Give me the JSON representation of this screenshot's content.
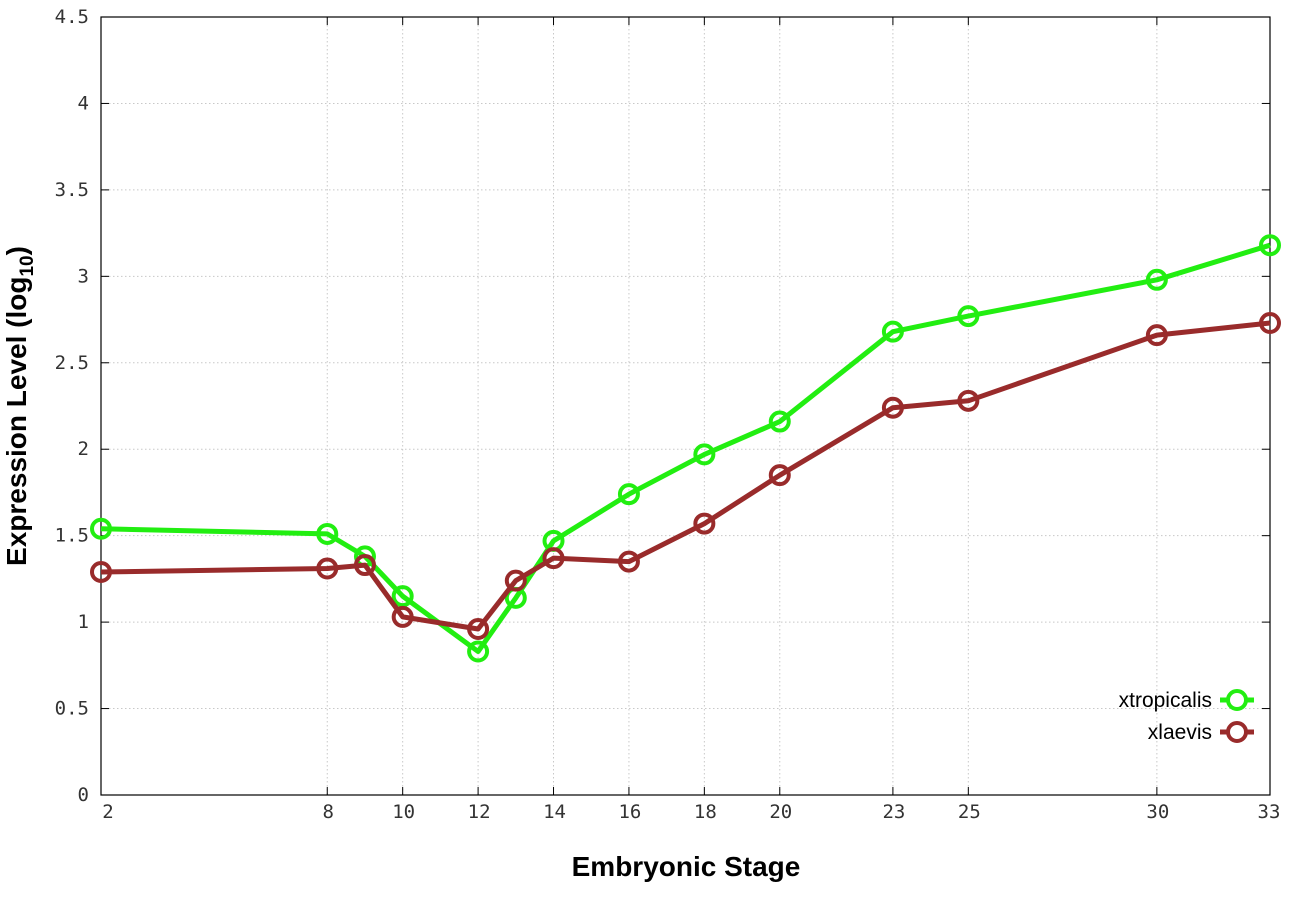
{
  "chart_data": {
    "type": "line",
    "title": "",
    "xlabel": "Embryonic Stage",
    "ylabel_main": "Expression Level (log",
    "ylabel_sub": "10",
    "ylabel_close": ")",
    "x_ticks": [
      "2",
      "8",
      "10",
      "12",
      "14",
      "16",
      "18",
      "20",
      "23",
      "25",
      "30",
      "33"
    ],
    "y_ticks": [
      "0",
      "0.5",
      "1",
      "1.5",
      "2",
      "2.5",
      "3",
      "3.5",
      "4",
      "4.5"
    ],
    "xlim": [
      2,
      33
    ],
    "ylim": [
      0,
      4.5
    ],
    "grid": true,
    "legend_position": "bottom-right",
    "x": [
      2,
      8,
      9,
      10,
      12,
      13,
      14,
      16,
      18,
      20,
      23,
      25,
      30,
      33
    ],
    "series": [
      {
        "name": "xtropicalis",
        "color": "#22ee11",
        "values": [
          1.54,
          1.51,
          1.38,
          1.15,
          0.83,
          1.14,
          1.47,
          1.74,
          1.97,
          2.16,
          2.68,
          2.77,
          2.98,
          3.18
        ]
      },
      {
        "name": "xlaevis",
        "color": "#992b2b",
        "values": [
          1.29,
          1.31,
          1.33,
          1.03,
          0.96,
          1.24,
          1.37,
          1.35,
          1.57,
          1.85,
          2.24,
          2.28,
          2.66,
          2.73
        ]
      }
    ]
  }
}
